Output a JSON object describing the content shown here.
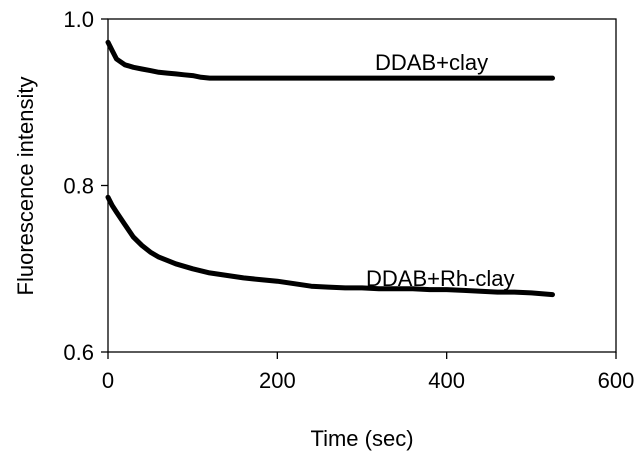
{
  "chart_data": {
    "type": "line",
    "xlabel": "Time (sec)",
    "ylabel": "Fluorescence intensity",
    "xlim": [
      0,
      600
    ],
    "ylim": [
      0.6,
      1.0
    ],
    "xticks": [
      0,
      200,
      400,
      600
    ],
    "xtick_labels": [
      "0",
      "200",
      "400",
      "600"
    ],
    "yticks": [
      0.6,
      0.8,
      1.0
    ],
    "ytick_labels": [
      "0.6",
      "0.8",
      "1.0"
    ],
    "grid": false,
    "legend": "none",
    "line_color": "#000000",
    "series": [
      {
        "name": "DDAB+clay",
        "x": [
          0,
          5,
          10,
          20,
          30,
          40,
          50,
          60,
          70,
          80,
          90,
          100,
          110,
          120,
          150,
          200,
          250,
          300,
          350,
          400,
          450,
          500,
          525
        ],
        "y": [
          0.972,
          0.962,
          0.952,
          0.945,
          0.942,
          0.94,
          0.938,
          0.936,
          0.935,
          0.934,
          0.933,
          0.932,
          0.93,
          0.929,
          0.929,
          0.929,
          0.929,
          0.929,
          0.929,
          0.929,
          0.929,
          0.929,
          0.929
        ]
      },
      {
        "name": "DDAB+Rh-clay",
        "x": [
          0,
          5,
          10,
          20,
          30,
          40,
          50,
          60,
          70,
          80,
          90,
          100,
          120,
          140,
          160,
          180,
          200,
          220,
          240,
          260,
          280,
          300,
          320,
          340,
          360,
          380,
          400,
          420,
          440,
          460,
          480,
          500,
          525
        ],
        "y": [
          0.786,
          0.776,
          0.768,
          0.753,
          0.738,
          0.728,
          0.72,
          0.714,
          0.71,
          0.706,
          0.703,
          0.7,
          0.695,
          0.692,
          0.689,
          0.687,
          0.685,
          0.682,
          0.679,
          0.678,
          0.677,
          0.677,
          0.676,
          0.676,
          0.676,
          0.675,
          0.675,
          0.674,
          0.673,
          0.672,
          0.672,
          0.671,
          0.669
        ]
      }
    ],
    "annotations": [
      "DDAB+clay",
      "DDAB+Rh-clay"
    ]
  }
}
